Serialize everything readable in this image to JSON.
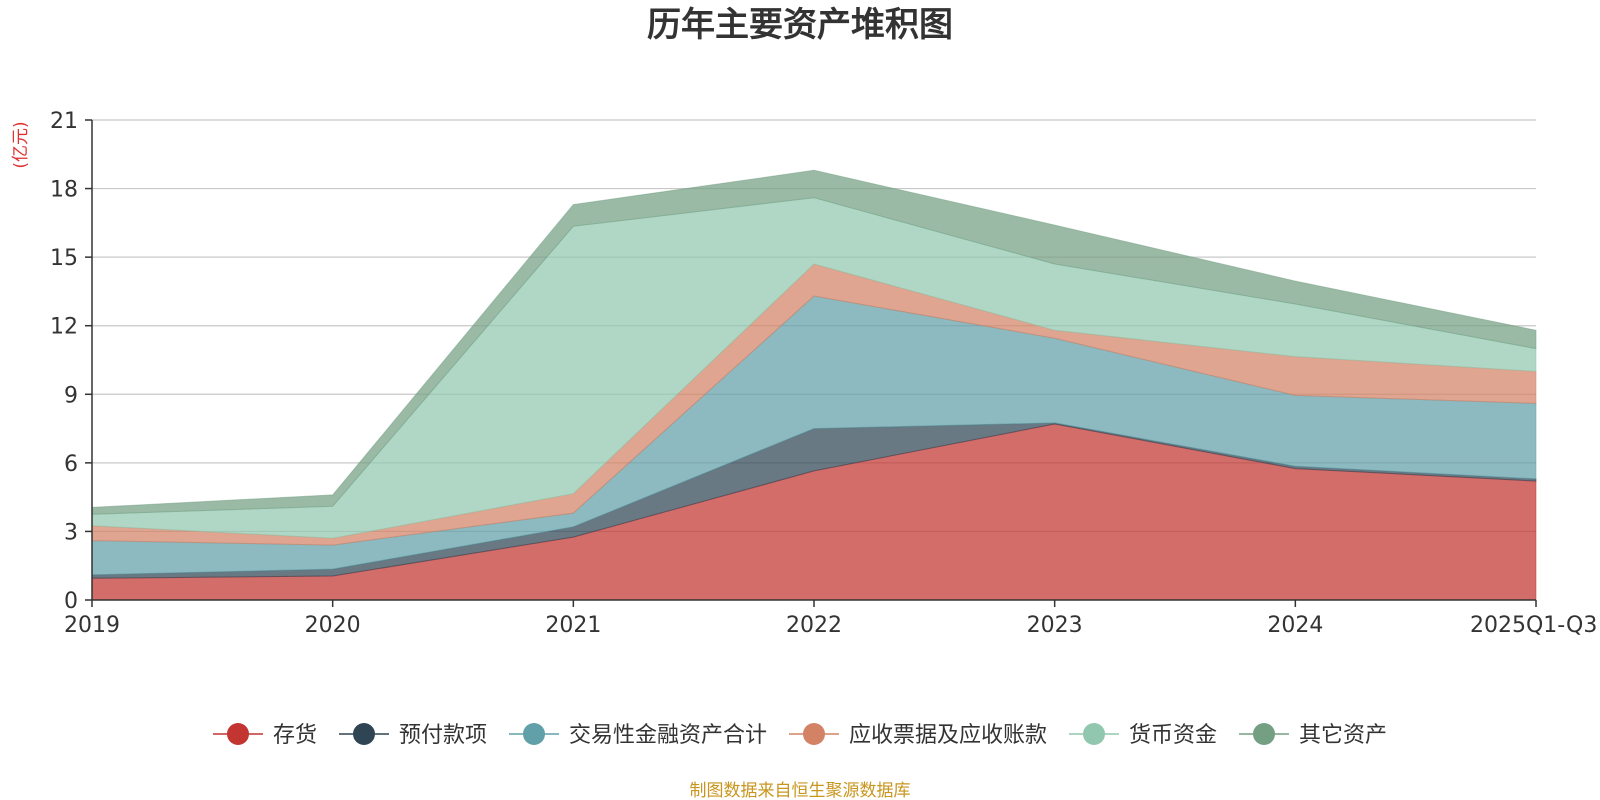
{
  "chart_data": {
    "type": "area",
    "stacked": true,
    "title": "历年主要资产堆积图",
    "ylabel": "(亿元)",
    "xlabel": "",
    "categories": [
      "2019",
      "2020",
      "2021",
      "2022",
      "2023",
      "2024",
      "2025Q1-Q3"
    ],
    "ylim": [
      0,
      21
    ],
    "yticks": [
      0,
      3,
      6,
      9,
      12,
      15,
      18,
      21
    ],
    "grid": true,
    "legend_position": "bottom",
    "series": [
      {
        "name": "存货",
        "color": "#c23531",
        "values": [
          0.95,
          1.05,
          2.75,
          5.65,
          7.7,
          5.75,
          5.2
        ]
      },
      {
        "name": "预付款项",
        "color": "#2f4554",
        "values": [
          0.15,
          0.3,
          0.45,
          1.85,
          0.05,
          0.1,
          0.1
        ]
      },
      {
        "name": "交易性金融资产合计",
        "color": "#61a0a8",
        "values": [
          1.5,
          1.05,
          0.6,
          5.8,
          3.7,
          3.1,
          3.3
        ]
      },
      {
        "name": "应收票据及应收账款",
        "color": "#d48265",
        "values": [
          0.65,
          0.3,
          0.85,
          1.4,
          0.35,
          1.7,
          1.4
        ]
      },
      {
        "name": "货币资金",
        "color": "#91c7ae",
        "values": [
          0.5,
          1.4,
          11.7,
          2.9,
          2.9,
          2.3,
          1.0
        ]
      },
      {
        "name": "其它资产",
        "color": "#749f83",
        "values": [
          0.3,
          0.5,
          0.95,
          1.2,
          1.7,
          1.0,
          0.8
        ]
      }
    ]
  },
  "source_note": "制图数据来自恒生聚源数据库"
}
